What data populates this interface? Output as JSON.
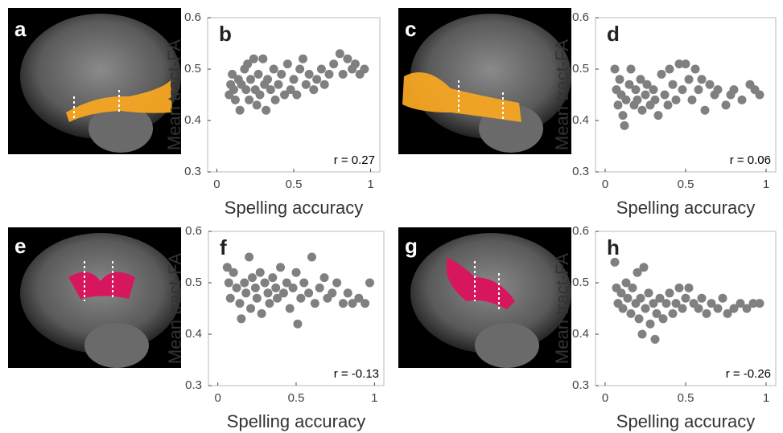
{
  "images": [
    {
      "label": "a"
    },
    {
      "label": "c"
    },
    {
      "label": "e"
    },
    {
      "label": "g"
    }
  ],
  "chart_data": [
    {
      "type": "scatter",
      "title": "b",
      "xlabel": "Spelling accuracy",
      "ylabel": "Mean tract-FA",
      "annotation": "r = 0.27",
      "color": "#808080",
      "xlim": [
        -0.06,
        1.06
      ],
      "ylim": [
        0.3,
        0.6
      ],
      "xticks": [
        0,
        0.5,
        1
      ],
      "yticks": [
        0.3,
        0.4,
        0.5,
        0.6
      ],
      "x": [
        0.08,
        0.09,
        0.1,
        0.11,
        0.12,
        0.14,
        0.15,
        0.16,
        0.18,
        0.19,
        0.2,
        0.21,
        0.22,
        0.24,
        0.25,
        0.26,
        0.27,
        0.28,
        0.3,
        0.31,
        0.32,
        0.33,
        0.35,
        0.37,
        0.38,
        0.4,
        0.42,
        0.44,
        0.46,
        0.48,
        0.5,
        0.52,
        0.54,
        0.56,
        0.58,
        0.6,
        0.63,
        0.65,
        0.68,
        0.7,
        0.73,
        0.76,
        0.8,
        0.82,
        0.85,
        0.88,
        0.9,
        0.93,
        0.96
      ],
      "y": [
        0.45,
        0.47,
        0.49,
        0.46,
        0.44,
        0.48,
        0.42,
        0.47,
        0.5,
        0.46,
        0.51,
        0.44,
        0.48,
        0.52,
        0.46,
        0.43,
        0.49,
        0.45,
        0.52,
        0.47,
        0.42,
        0.48,
        0.46,
        0.5,
        0.44,
        0.47,
        0.49,
        0.45,
        0.51,
        0.46,
        0.48,
        0.45,
        0.5,
        0.52,
        0.47,
        0.49,
        0.46,
        0.48,
        0.5,
        0.47,
        0.49,
        0.51,
        0.53,
        0.49,
        0.52,
        0.5,
        0.51,
        0.49,
        0.5
      ]
    },
    {
      "type": "scatter",
      "title": "d",
      "xlabel": "Spelling accuracy",
      "ylabel": "Mean tract-FA",
      "annotation": "r = 0.06",
      "color": "#808080",
      "xlim": [
        -0.06,
        1.06
      ],
      "ylim": [
        0.3,
        0.6
      ],
      "xticks": [
        0,
        0.5,
        1
      ],
      "yticks": [
        0.3,
        0.4,
        0.5,
        0.6
      ],
      "x": [
        0.06,
        0.07,
        0.08,
        0.09,
        0.1,
        0.11,
        0.12,
        0.13,
        0.15,
        0.16,
        0.18,
        0.19,
        0.2,
        0.22,
        0.23,
        0.25,
        0.26,
        0.28,
        0.3,
        0.31,
        0.33,
        0.35,
        0.37,
        0.39,
        0.4,
        0.42,
        0.44,
        0.46,
        0.48,
        0.5,
        0.52,
        0.54,
        0.56,
        0.58,
        0.6,
        0.62,
        0.65,
        0.68,
        0.7,
        0.75,
        0.78,
        0.8,
        0.85,
        0.9,
        0.93,
        0.96
      ],
      "y": [
        0.5,
        0.46,
        0.43,
        0.48,
        0.45,
        0.41,
        0.39,
        0.44,
        0.47,
        0.5,
        0.43,
        0.46,
        0.44,
        0.48,
        0.42,
        0.45,
        0.47,
        0.43,
        0.46,
        0.44,
        0.41,
        0.49,
        0.45,
        0.43,
        0.5,
        0.47,
        0.44,
        0.51,
        0.46,
        0.51,
        0.48,
        0.44,
        0.5,
        0.46,
        0.48,
        0.42,
        0.47,
        0.45,
        0.46,
        0.43,
        0.45,
        0.46,
        0.44,
        0.47,
        0.46,
        0.45
      ]
    },
    {
      "type": "scatter",
      "title": "f",
      "xlabel": "Spelling accuracy",
      "ylabel": "Mean tract-FA",
      "annotation": "r = -0.13",
      "color": "#808080",
      "xlim": [
        -0.06,
        1.06
      ],
      "ylim": [
        0.3,
        0.6
      ],
      "xticks": [
        0,
        0.5,
        1
      ],
      "yticks": [
        0.3,
        0.4,
        0.5,
        0.6
      ],
      "x": [
        0.06,
        0.07,
        0.08,
        0.1,
        0.12,
        0.14,
        0.15,
        0.17,
        0.18,
        0.2,
        0.21,
        0.22,
        0.24,
        0.25,
        0.27,
        0.28,
        0.3,
        0.32,
        0.33,
        0.35,
        0.37,
        0.38,
        0.4,
        0.42,
        0.44,
        0.46,
        0.48,
        0.5,
        0.51,
        0.53,
        0.55,
        0.58,
        0.6,
        0.62,
        0.65,
        0.68,
        0.7,
        0.73,
        0.76,
        0.8,
        0.83,
        0.86,
        0.9,
        0.94,
        0.97
      ],
      "y": [
        0.53,
        0.5,
        0.47,
        0.52,
        0.49,
        0.46,
        0.43,
        0.5,
        0.48,
        0.55,
        0.45,
        0.51,
        0.49,
        0.47,
        0.52,
        0.44,
        0.5,
        0.48,
        0.46,
        0.51,
        0.49,
        0.47,
        0.53,
        0.48,
        0.5,
        0.45,
        0.49,
        0.52,
        0.42,
        0.47,
        0.5,
        0.48,
        0.55,
        0.46,
        0.49,
        0.51,
        0.47,
        0.48,
        0.5,
        0.46,
        0.48,
        0.46,
        0.47,
        0.46,
        0.5
      ]
    },
    {
      "type": "scatter",
      "title": "h",
      "xlabel": "Spelling accuracy",
      "ylabel": "Mean tract-FA",
      "annotation": "r = -0.26",
      "color": "#808080",
      "xlim": [
        -0.06,
        1.06
      ],
      "ylim": [
        0.3,
        0.6
      ],
      "xticks": [
        0,
        0.5,
        1
      ],
      "yticks": [
        0.3,
        0.4,
        0.5,
        0.6
      ],
      "x": [
        0.06,
        0.07,
        0.08,
        0.1,
        0.11,
        0.13,
        0.14,
        0.16,
        0.17,
        0.19,
        0.2,
        0.21,
        0.22,
        0.23,
        0.24,
        0.25,
        0.27,
        0.28,
        0.3,
        0.31,
        0.32,
        0.34,
        0.36,
        0.38,
        0.4,
        0.42,
        0.44,
        0.46,
        0.48,
        0.5,
        0.52,
        0.55,
        0.58,
        0.6,
        0.63,
        0.66,
        0.7,
        0.73,
        0.76,
        0.8,
        0.84,
        0.88,
        0.92,
        0.96
      ],
      "y": [
        0.54,
        0.49,
        0.46,
        0.48,
        0.45,
        0.5,
        0.47,
        0.44,
        0.49,
        0.46,
        0.52,
        0.43,
        0.47,
        0.4,
        0.53,
        0.45,
        0.48,
        0.42,
        0.46,
        0.39,
        0.44,
        0.47,
        0.43,
        0.46,
        0.48,
        0.44,
        0.46,
        0.49,
        0.45,
        0.47,
        0.49,
        0.46,
        0.45,
        0.47,
        0.44,
        0.46,
        0.45,
        0.47,
        0.44,
        0.45,
        0.46,
        0.45,
        0.46,
        0.46
      ]
    }
  ]
}
